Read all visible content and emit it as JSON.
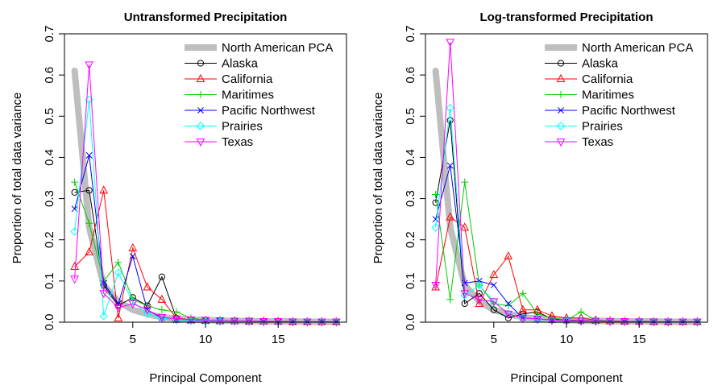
{
  "chart_data": [
    {
      "type": "line",
      "title": "Untransformed Precipitation",
      "xlabel": "Principal Component",
      "ylabel": "Proportion of total data variance",
      "xlim": [
        0.3,
        19.7
      ],
      "ylim": [
        0,
        0.7
      ],
      "x_ticks": [
        5,
        10,
        15
      ],
      "y_ticks": [
        0.0,
        0.1,
        0.2,
        0.3,
        0.4,
        0.5,
        0.6,
        0.7
      ],
      "y_tick_labels": [
        "0.0",
        "0.1",
        "0.2",
        "0.3",
        "0.4",
        "0.5",
        "0.6",
        "0.7"
      ],
      "legend_position": "top-right",
      "reference": {
        "name": "North American PCA",
        "color": "#bebebe",
        "x": [
          1,
          2,
          3,
          4,
          5,
          6,
          7,
          8,
          9,
          10,
          11,
          12,
          13,
          14,
          15,
          16,
          17,
          18,
          19
        ],
        "y": [
          0.61,
          0.23,
          0.09,
          0.05,
          0.03,
          0.02,
          0.012,
          0.008,
          0.006,
          0.005,
          0.004,
          0.003,
          0.003,
          0.002,
          0.002,
          0.002,
          0.001,
          0.001,
          0.001
        ]
      },
      "series": [
        {
          "name": "Alaska",
          "color": "#000000",
          "marker": "circle",
          "x": [
            1,
            2,
            3,
            4,
            5,
            6,
            7,
            8,
            9,
            10,
            11,
            12,
            13,
            14,
            15,
            16,
            17,
            18,
            19
          ],
          "y": [
            0.315,
            0.32,
            0.09,
            0.04,
            0.06,
            0.04,
            0.11,
            0.01,
            0.005,
            0.004,
            0.003,
            0.003,
            0.002,
            0.002,
            0.002,
            0.001,
            0.001,
            0.001,
            0.001
          ]
        },
        {
          "name": "California",
          "color": "#ff0000",
          "marker": "triangle-up",
          "x": [
            1,
            2,
            3,
            4,
            5,
            6,
            7,
            8,
            9,
            10,
            11,
            12,
            13,
            14,
            15,
            16,
            17,
            18,
            19
          ],
          "y": [
            0.135,
            0.17,
            0.32,
            0.01,
            0.18,
            0.085,
            0.055,
            0.01,
            0.005,
            0.004,
            0.003,
            0.003,
            0.002,
            0.002,
            0.002,
            0.001,
            0.001,
            0.001,
            0.001
          ]
        },
        {
          "name": "Maritimes",
          "color": "#00cd00",
          "marker": "plus",
          "x": [
            1,
            2,
            3,
            4,
            5,
            6,
            7,
            8,
            9,
            10,
            11,
            12,
            13,
            14,
            15,
            16,
            17,
            18,
            19
          ],
          "y": [
            0.34,
            0.24,
            0.1,
            0.145,
            0.055,
            0.04,
            0.03,
            0.025,
            0.01,
            0.005,
            0.004,
            0.003,
            0.002,
            0.002,
            0.002,
            0.001,
            0.001,
            0.001,
            0.001
          ]
        },
        {
          "name": "Pacific Northwest",
          "color": "#0000ff",
          "marker": "cross",
          "x": [
            1,
            2,
            3,
            4,
            5,
            6,
            7,
            8,
            9,
            10,
            11,
            12,
            13,
            14,
            15,
            16,
            17,
            18,
            19
          ],
          "y": [
            0.275,
            0.405,
            0.095,
            0.045,
            0.16,
            0.03,
            0.01,
            0.005,
            0.004,
            0.003,
            0.003,
            0.002,
            0.002,
            0.002,
            0.001,
            0.001,
            0.001,
            0.001,
            0.001
          ]
        },
        {
          "name": "Prairies",
          "color": "#00ffff",
          "marker": "diamond",
          "x": [
            1,
            2,
            3,
            4,
            5,
            6,
            7,
            8,
            9,
            10,
            11,
            12,
            13,
            14,
            15,
            16,
            17,
            18,
            19
          ],
          "y": [
            0.22,
            0.54,
            0.015,
            0.12,
            0.05,
            0.02,
            0.01,
            0.005,
            0.004,
            0.003,
            0.002,
            0.002,
            0.002,
            0.001,
            0.001,
            0.001,
            0.001,
            0.001,
            0.001
          ]
        },
        {
          "name": "Texas",
          "color": "#ff00ff",
          "marker": "triangle-down",
          "x": [
            1,
            2,
            3,
            4,
            5,
            6,
            7,
            8,
            9,
            10,
            11,
            12,
            13,
            14,
            15,
            16,
            17,
            18,
            19
          ],
          "y": [
            0.105,
            0.625,
            0.07,
            0.035,
            0.045,
            0.03,
            0.012,
            0.008,
            0.006,
            0.005,
            0.004,
            0.003,
            0.003,
            0.002,
            0.002,
            0.001,
            0.001,
            0.001,
            0.001
          ]
        }
      ]
    },
    {
      "type": "line",
      "title": "Log-transformed Precipitation",
      "xlabel": "Principal Component",
      "ylabel": "Proportion of total data variance",
      "xlim": [
        0.3,
        19.7
      ],
      "ylim": [
        0,
        0.7
      ],
      "x_ticks": [
        5,
        10,
        15
      ],
      "y_ticks": [
        0.0,
        0.1,
        0.2,
        0.3,
        0.4,
        0.5,
        0.6,
        0.7
      ],
      "y_tick_labels": [
        "0.0",
        "0.1",
        "0.2",
        "0.3",
        "0.4",
        "0.5",
        "0.6",
        "0.7"
      ],
      "legend_position": "top-right",
      "reference": {
        "name": "North American PCA",
        "color": "#bebebe",
        "x": [
          1,
          2,
          3,
          4,
          5,
          6,
          7,
          8,
          9,
          10,
          11,
          12,
          13,
          14,
          15,
          16,
          17,
          18,
          19
        ],
        "y": [
          0.61,
          0.23,
          0.09,
          0.05,
          0.03,
          0.02,
          0.012,
          0.008,
          0.006,
          0.005,
          0.004,
          0.003,
          0.003,
          0.002,
          0.002,
          0.002,
          0.001,
          0.001,
          0.001
        ]
      },
      "series": [
        {
          "name": "Alaska",
          "color": "#000000",
          "marker": "circle",
          "x": [
            1,
            2,
            3,
            4,
            5,
            6,
            7,
            8,
            9,
            10,
            11,
            12,
            13,
            14,
            15,
            16,
            17,
            18,
            19
          ],
          "y": [
            0.29,
            0.49,
            0.045,
            0.07,
            0.03,
            0.01,
            0.02,
            0.025,
            0.008,
            0.005,
            0.004,
            0.003,
            0.002,
            0.002,
            0.002,
            0.001,
            0.001,
            0.001,
            0.001
          ]
        },
        {
          "name": "California",
          "color": "#ff0000",
          "marker": "triangle-up",
          "x": [
            1,
            2,
            3,
            4,
            5,
            6,
            7,
            8,
            9,
            10,
            11,
            12,
            13,
            14,
            15,
            16,
            17,
            18,
            19
          ],
          "y": [
            0.085,
            0.255,
            0.23,
            0.045,
            0.115,
            0.16,
            0.03,
            0.03,
            0.015,
            0.01,
            0.01,
            0.005,
            0.003,
            0.002,
            0.002,
            0.001,
            0.001,
            0.001,
            0.001
          ]
        },
        {
          "name": "Maritimes",
          "color": "#00cd00",
          "marker": "plus",
          "x": [
            1,
            2,
            3,
            4,
            5,
            6,
            7,
            8,
            9,
            10,
            11,
            12,
            13,
            14,
            15,
            16,
            17,
            18,
            19
          ],
          "y": [
            0.31,
            0.055,
            0.34,
            0.09,
            0.045,
            0.04,
            0.07,
            0.02,
            0.01,
            0.005,
            0.025,
            0.005,
            0.003,
            0.002,
            0.002,
            0.001,
            0.001,
            0.001,
            0.001
          ]
        },
        {
          "name": "Pacific Northwest",
          "color": "#0000ff",
          "marker": "cross",
          "x": [
            1,
            2,
            3,
            4,
            5,
            6,
            7,
            8,
            9,
            10,
            11,
            12,
            13,
            14,
            15,
            16,
            17,
            18,
            19
          ],
          "y": [
            0.25,
            0.38,
            0.095,
            0.1,
            0.09,
            0.045,
            0.01,
            0.008,
            0.005,
            0.004,
            0.003,
            0.003,
            0.002,
            0.002,
            0.001,
            0.001,
            0.001,
            0.001,
            0.001
          ]
        },
        {
          "name": "Prairies",
          "color": "#00ffff",
          "marker": "diamond",
          "x": [
            1,
            2,
            3,
            4,
            5,
            6,
            7,
            8,
            9,
            10,
            11,
            12,
            13,
            14,
            15,
            16,
            17,
            18,
            19
          ],
          "y": [
            0.23,
            0.52,
            0.065,
            0.09,
            0.05,
            0.02,
            0.01,
            0.006,
            0.005,
            0.004,
            0.003,
            0.002,
            0.002,
            0.002,
            0.001,
            0.001,
            0.001,
            0.001,
            0.001
          ]
        },
        {
          "name": "Texas",
          "color": "#ff00ff",
          "marker": "triangle-down",
          "x": [
            1,
            2,
            3,
            4,
            5,
            6,
            7,
            8,
            9,
            10,
            11,
            12,
            13,
            14,
            15,
            16,
            17,
            18,
            19
          ],
          "y": [
            0.09,
            0.68,
            0.07,
            0.055,
            0.05,
            0.02,
            0.01,
            0.008,
            0.005,
            0.004,
            0.003,
            0.003,
            0.002,
            0.002,
            0.001,
            0.001,
            0.001,
            0.001,
            0.001
          ]
        }
      ]
    }
  ]
}
